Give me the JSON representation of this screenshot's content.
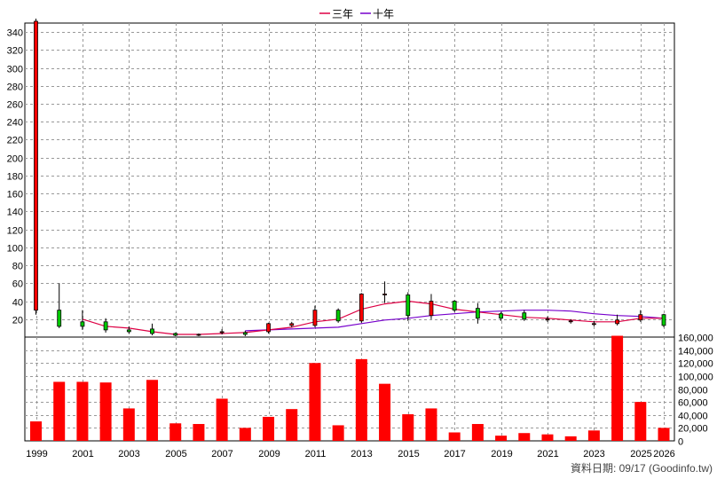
{
  "legend": [
    {
      "label": "三年",
      "color": "#dd0044"
    },
    {
      "label": "十年",
      "color": "#7700cc"
    }
  ],
  "source_text": "資料日期: 09/17  (Goodinfo.tw)",
  "chart_data": {
    "type": "candlestick-with-volume",
    "x_tick_labels": [
      "1999",
      "2001",
      "2003",
      "2005",
      "2007",
      "2009",
      "2011",
      "2013",
      "2015",
      "2017",
      "2019",
      "2021",
      "2023",
      "2025",
      "2026"
    ],
    "price_axis": {
      "min": 0,
      "max": 350,
      "ticks": [
        20,
        40,
        60,
        80,
        100,
        120,
        140,
        160,
        180,
        200,
        220,
        240,
        260,
        280,
        300,
        320,
        340
      ]
    },
    "volume_axis": {
      "min": 0,
      "max": 160000,
      "tick_labels": [
        "0",
        "20,000",
        "40,000",
        "60,000",
        "80,000",
        "100,000",
        "120,000",
        "140,000",
        "160,000"
      ]
    },
    "candles": [
      {
        "year": 1999,
        "open": 30,
        "close": 352,
        "high": 355,
        "low": 25
      },
      {
        "year": 2000,
        "open": 30,
        "close": 12,
        "high": 60,
        "low": 10
      },
      {
        "year": 2001,
        "open": 17,
        "close": 12,
        "high": 30,
        "low": 8
      },
      {
        "year": 2002,
        "open": 17,
        "close": 8,
        "high": 21,
        "low": 5
      },
      {
        "year": 2003,
        "open": 8,
        "close": 6,
        "high": 12,
        "low": 4
      },
      {
        "year": 2004,
        "open": 9,
        "close": 4,
        "high": 15,
        "low": 2
      },
      {
        "year": 2005,
        "open": 4,
        "close": 2,
        "high": 5,
        "low": 1
      },
      {
        "year": 2006,
        "open": 3,
        "close": 3,
        "high": 4,
        "low": 1
      },
      {
        "year": 2007,
        "open": 5,
        "close": 6,
        "high": 9,
        "low": 3
      },
      {
        "year": 2008,
        "open": 5,
        "close": 3,
        "high": 7,
        "low": 1
      },
      {
        "year": 2009,
        "open": 6,
        "close": 15,
        "high": 16,
        "low": 4
      },
      {
        "year": 2010,
        "open": 13,
        "close": 15,
        "high": 17,
        "low": 11
      },
      {
        "year": 2011,
        "open": 13,
        "close": 30,
        "high": 35,
        "low": 11
      },
      {
        "year": 2012,
        "open": 30,
        "close": 18,
        "high": 32,
        "low": 16
      },
      {
        "year": 2013,
        "open": 18,
        "close": 48,
        "high": 49,
        "low": 16
      },
      {
        "year": 2014,
        "open": 47,
        "close": 48,
        "high": 62,
        "low": 38
      },
      {
        "year": 2015,
        "open": 47,
        "close": 24,
        "high": 50,
        "low": 18
      },
      {
        "year": 2016,
        "open": 24,
        "close": 40,
        "high": 48,
        "low": 20
      },
      {
        "year": 2017,
        "open": 40,
        "close": 30,
        "high": 41,
        "low": 28
      },
      {
        "year": 2018,
        "open": 32,
        "close": 21,
        "high": 38,
        "low": 15
      },
      {
        "year": 2019,
        "open": 26,
        "close": 21,
        "high": 28,
        "low": 18
      },
      {
        "year": 2020,
        "open": 27,
        "close": 20,
        "high": 30,
        "low": 18
      },
      {
        "year": 2021,
        "open": 20,
        "close": 20,
        "high": 23,
        "low": 17
      },
      {
        "year": 2022,
        "open": 18,
        "close": 18,
        "high": 20,
        "low": 15
      },
      {
        "year": 2023,
        "open": 15,
        "close": 15,
        "high": 18,
        "low": 12
      },
      {
        "year": 2024,
        "open": 15,
        "close": 19,
        "high": 25,
        "low": 13
      },
      {
        "year": 2025,
        "open": 19,
        "close": 25,
        "high": 30,
        "low": 17
      },
      {
        "year": 2026,
        "open": 25,
        "close": 13,
        "high": 26,
        "low": 11
      }
    ],
    "volume": [
      {
        "year": 1999,
        "value": 30000
      },
      {
        "year": 2000,
        "value": 91000
      },
      {
        "year": 2001,
        "value": 91000
      },
      {
        "year": 2002,
        "value": 90000
      },
      {
        "year": 2003,
        "value": 50000
      },
      {
        "year": 2004,
        "value": 94000
      },
      {
        "year": 2005,
        "value": 27000
      },
      {
        "year": 2006,
        "value": 26000
      },
      {
        "year": 2007,
        "value": 65000
      },
      {
        "year": 2008,
        "value": 20000
      },
      {
        "year": 2009,
        "value": 37000
      },
      {
        "year": 2010,
        "value": 49000
      },
      {
        "year": 2011,
        "value": 120000
      },
      {
        "year": 2012,
        "value": 24000
      },
      {
        "year": 2013,
        "value": 126000
      },
      {
        "year": 2014,
        "value": 88000
      },
      {
        "year": 2015,
        "value": 41000
      },
      {
        "year": 2016,
        "value": 50000
      },
      {
        "year": 2017,
        "value": 13000
      },
      {
        "year": 2018,
        "value": 26000
      },
      {
        "year": 2019,
        "value": 8000
      },
      {
        "year": 2020,
        "value": 12000
      },
      {
        "year": 2021,
        "value": 10000
      },
      {
        "year": 2022,
        "value": 7000
      },
      {
        "year": 2023,
        "value": 16000
      },
      {
        "year": 2024,
        "value": 162000
      },
      {
        "year": 2025,
        "value": 60000
      },
      {
        "year": 2026,
        "value": 20000
      }
    ],
    "ma_3yr": [
      {
        "year": 2001,
        "value": 20
      },
      {
        "year": 2002,
        "value": 12
      },
      {
        "year": 2003,
        "value": 10
      },
      {
        "year": 2004,
        "value": 6
      },
      {
        "year": 2005,
        "value": 3
      },
      {
        "year": 2006,
        "value": 3
      },
      {
        "year": 2007,
        "value": 4
      },
      {
        "year": 2008,
        "value": 5
      },
      {
        "year": 2009,
        "value": 8
      },
      {
        "year": 2010,
        "value": 11
      },
      {
        "year": 2011,
        "value": 17
      },
      {
        "year": 2012,
        "value": 20
      },
      {
        "year": 2013,
        "value": 31
      },
      {
        "year": 2014,
        "value": 37
      },
      {
        "year": 2015,
        "value": 40
      },
      {
        "year": 2016,
        "value": 37
      },
      {
        "year": 2017,
        "value": 31
      },
      {
        "year": 2018,
        "value": 28
      },
      {
        "year": 2019,
        "value": 25
      },
      {
        "year": 2020,
        "value": 22
      },
      {
        "year": 2021,
        "value": 21
      },
      {
        "year": 2022,
        "value": 19
      },
      {
        "year": 2023,
        "value": 17
      },
      {
        "year": 2024,
        "value": 17
      },
      {
        "year": 2025,
        "value": 21
      },
      {
        "year": 2026,
        "value": 21
      }
    ],
    "ma_10yr": [
      {
        "year": 2008,
        "value": 7
      },
      {
        "year": 2009,
        "value": 8
      },
      {
        "year": 2010,
        "value": 9
      },
      {
        "year": 2011,
        "value": 10
      },
      {
        "year": 2012,
        "value": 11
      },
      {
        "year": 2013,
        "value": 15
      },
      {
        "year": 2014,
        "value": 19
      },
      {
        "year": 2015,
        "value": 21
      },
      {
        "year": 2016,
        "value": 24
      },
      {
        "year": 2017,
        "value": 26
      },
      {
        "year": 2018,
        "value": 28
      },
      {
        "year": 2019,
        "value": 29
      },
      {
        "year": 2020,
        "value": 30
      },
      {
        "year": 2021,
        "value": 30
      },
      {
        "year": 2022,
        "value": 29
      },
      {
        "year": 2023,
        "value": 26
      },
      {
        "year": 2024,
        "value": 24
      },
      {
        "year": 2025,
        "value": 23
      },
      {
        "year": 2026,
        "value": 21
      }
    ]
  }
}
